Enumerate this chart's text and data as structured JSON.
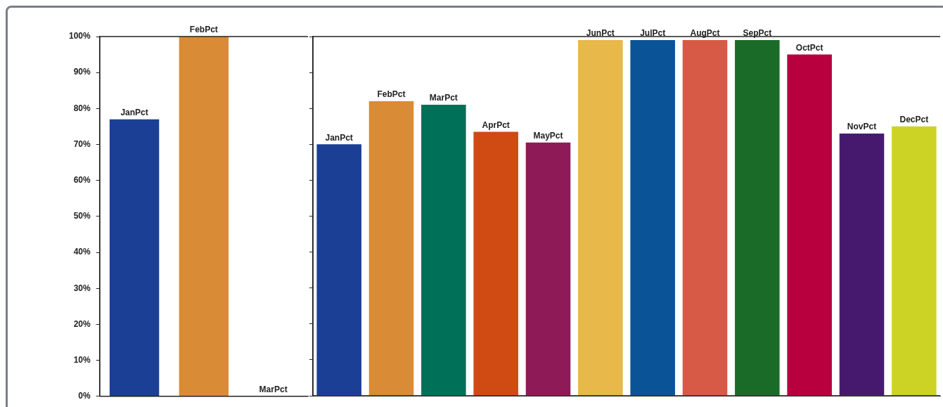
{
  "chart_data": [
    {
      "type": "bar",
      "categories": [
        "JanPct",
        "FebPct",
        "MarPct"
      ],
      "values": [
        77,
        100,
        0
      ],
      "colors": [
        "#1a3f94",
        "#d98c35",
        "#007158"
      ],
      "ylim": [
        0,
        100
      ],
      "yticks": [
        {
          "value": 0,
          "label": "0%"
        },
        {
          "value": 10,
          "label": "10%"
        },
        {
          "value": 20,
          "label": "20%"
        },
        {
          "value": 30,
          "label": "30%"
        },
        {
          "value": 40,
          "label": "40%"
        },
        {
          "value": 50,
          "label": "50%"
        },
        {
          "value": 60,
          "label": "60%"
        },
        {
          "value": 70,
          "label": "70%"
        },
        {
          "value": 80,
          "label": "80%"
        },
        {
          "value": 90,
          "label": "90%"
        },
        {
          "value": 100,
          "label": "100%"
        }
      ],
      "tick_labels": "y",
      "grid": false,
      "legend": false
    },
    {
      "type": "bar",
      "categories": [
        "JanPct",
        "FebPct",
        "MarPct",
        "AprPct",
        "MayPct",
        "JunPct",
        "JulPct",
        "AugPct",
        "SepPct",
        "OctPct",
        "NovPct",
        "DecPct"
      ],
      "values": [
        70,
        82,
        81,
        73.5,
        70.5,
        99,
        99,
        99,
        99,
        95,
        73,
        75
      ],
      "colors": [
        "#1a3f94",
        "#d98c35",
        "#007158",
        "#d04a14",
        "#8e1a58",
        "#e8b84a",
        "#0a5396",
        "#d65a45",
        "#1b6b28",
        "#b8003f",
        "#47196e",
        "#cdd325"
      ],
      "ylim": [
        0,
        100
      ],
      "yticks": [
        {
          "value": 0,
          "label": null
        },
        {
          "value": 10,
          "label": null
        },
        {
          "value": 20,
          "label": null
        },
        {
          "value": 30,
          "label": null
        },
        {
          "value": 40,
          "label": null
        },
        {
          "value": 50,
          "label": null
        },
        {
          "value": 60,
          "label": null
        },
        {
          "value": 70,
          "label": null
        },
        {
          "value": 80,
          "label": null
        },
        {
          "value": 90,
          "label": null
        },
        {
          "value": 100,
          "label": null
        }
      ],
      "tick_labels": false,
      "grid": false,
      "legend": false
    }
  ]
}
